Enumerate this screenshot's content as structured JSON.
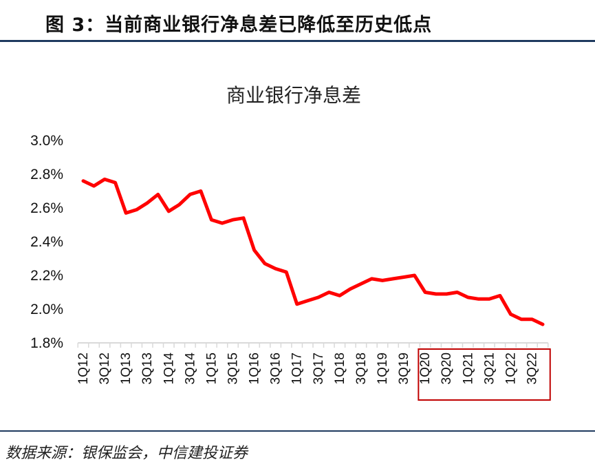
{
  "figure_title": "图 3：当前商业银行净息差已降低至历史低点",
  "source_note": "数据来源：银保监会，中信建投证券",
  "colors": {
    "line": "#ff0000",
    "highlight_box": "#c00000",
    "rule": "#1f3a5f"
  },
  "chart_data": {
    "type": "line",
    "title": "商业银行净息差",
    "xlabel": "",
    "ylabel": "",
    "ylim": [
      1.8,
      3.0
    ],
    "yticks": [
      "1.8%",
      "2.0%",
      "2.2%",
      "2.4%",
      "2.6%",
      "2.8%",
      "3.0%"
    ],
    "grid": false,
    "categories": [
      "1Q12",
      "2Q12",
      "3Q12",
      "4Q12",
      "1Q13",
      "2Q13",
      "3Q13",
      "4Q13",
      "1Q14",
      "2Q14",
      "3Q14",
      "4Q14",
      "1Q15",
      "2Q15",
      "3Q15",
      "4Q15",
      "1Q16",
      "2Q16",
      "3Q16",
      "4Q16",
      "1Q17",
      "2Q17",
      "3Q17",
      "4Q17",
      "1Q18",
      "2Q18",
      "3Q18",
      "4Q18",
      "1Q19",
      "2Q19",
      "3Q19",
      "4Q19",
      "1Q20",
      "2Q20",
      "3Q20",
      "4Q20",
      "1Q21",
      "2Q21",
      "3Q21",
      "4Q21",
      "1Q22",
      "2Q22",
      "3Q22",
      "4Q22"
    ],
    "tick_labels": [
      "1Q12",
      "3Q12",
      "1Q13",
      "3Q13",
      "1Q14",
      "3Q14",
      "1Q15",
      "3Q15",
      "1Q16",
      "3Q16",
      "1Q17",
      "3Q17",
      "1Q18",
      "3Q18",
      "1Q19",
      "3Q19",
      "1Q20",
      "3Q20",
      "1Q21",
      "3Q21",
      "1Q22",
      "3Q22"
    ],
    "series": [
      {
        "values": [
          2.76,
          2.73,
          2.77,
          2.75,
          2.57,
          2.59,
          2.63,
          2.68,
          2.58,
          2.62,
          2.68,
          2.7,
          2.53,
          2.51,
          2.53,
          2.54,
          2.35,
          2.27,
          2.24,
          2.22,
          2.03,
          2.05,
          2.07,
          2.1,
          2.08,
          2.12,
          2.15,
          2.18,
          2.17,
          2.18,
          2.19,
          2.2,
          2.1,
          2.09,
          2.09,
          2.1,
          2.07,
          2.06,
          2.06,
          2.08,
          1.97,
          1.94,
          1.94,
          1.91
        ]
      }
    ],
    "highlight_range": [
      "1Q20",
      "4Q22"
    ]
  }
}
